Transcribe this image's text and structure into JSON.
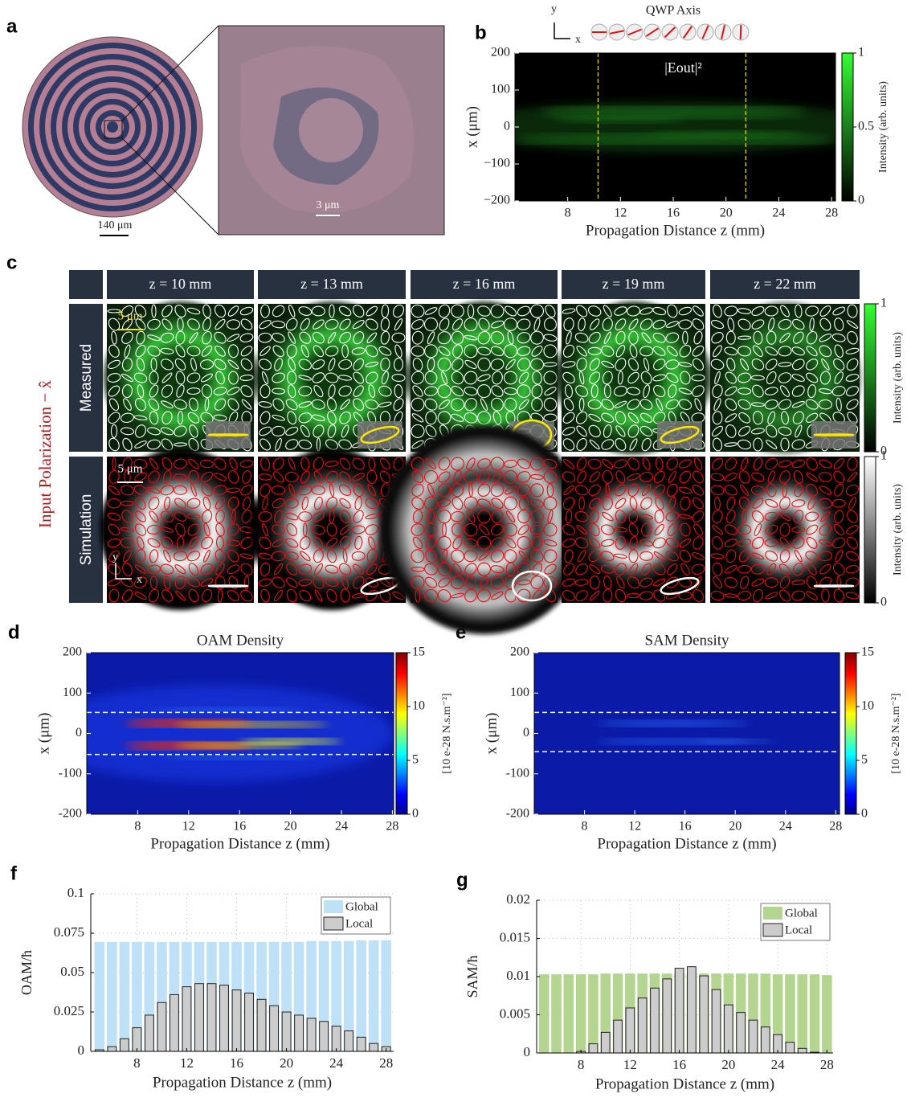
{
  "panel_a": {
    "label": "a",
    "scale_bars": [
      "140 μm",
      "3 μm"
    ]
  },
  "panel_c": {
    "label": "c",
    "columns": [
      "z = 10 mm",
      "z = 13 mm",
      "z = 16 mm",
      "z = 19 mm",
      "z = 22 mm"
    ],
    "rows": [
      "Measured",
      "Simulation"
    ],
    "side_label": "Input Polarization − x̂",
    "scale_bars": [
      "5 μm",
      "5 μm"
    ],
    "axis_icon": [
      "y",
      "x"
    ],
    "colorbars": [
      {
        "label": "Intensity (arb. units)",
        "lim": [
          0,
          1
        ],
        "ticks": [
          0,
          1
        ]
      },
      {
        "label": "Intensity (arb. units)",
        "lim": [
          0,
          1
        ],
        "ticks": [
          0,
          1
        ]
      }
    ]
  },
  "chart_data": [
    {
      "type": "heatmap",
      "label": "b",
      "title": "|Eout|²",
      "annotation": "QWP Axis",
      "axis_icon": [
        "y",
        "x"
      ],
      "xlabel": "Propagation Distance z (mm)",
      "ylabel": "x (μm)",
      "xlim": [
        4,
        28.3
      ],
      "xticks": [
        8,
        12,
        16,
        20,
        24,
        28
      ],
      "ylim": [
        -200,
        200
      ],
      "yticks": [
        {
          "value": -200,
          "label": "−200"
        },
        {
          "value": -100,
          "label": "−100"
        },
        0,
        100,
        200
      ],
      "colormap": "green",
      "vlines": [
        10.3,
        21.5
      ],
      "colorbar": {
        "label": "Intensity (arb. units)",
        "lim": [
          0,
          1
        ],
        "ticks": [
          0,
          0.5,
          1
        ]
      }
    },
    {
      "type": "heatmap",
      "label": "d",
      "title": "OAM Density",
      "xlabel": "Propagation Distance z (mm)",
      "ylabel": "x (μm)",
      "xlim": [
        4,
        28.1
      ],
      "xticks": [
        8,
        12,
        16,
        20,
        24,
        28
      ],
      "ylim": [
        -200,
        200
      ],
      "yticks": [
        -200,
        -100,
        0,
        100,
        200
      ],
      "colormap": "jet",
      "hlines": [
        52,
        -52
      ],
      "colorbar": {
        "label": "[10 e-28 N.s.m⁻²]",
        "lim": [
          0,
          15
        ],
        "ticks": [
          0,
          5,
          10,
          15
        ]
      }
    },
    {
      "type": "heatmap",
      "label": "e",
      "title": "SAM Density",
      "xlabel": "Propagation Distance z (mm)",
      "ylabel": "x (μm)",
      "xlim": [
        4,
        28.3
      ],
      "xticks": [
        8,
        12,
        16,
        20,
        24,
        28
      ],
      "ylim": [
        -200,
        200
      ],
      "yticks": [
        -200,
        -100,
        0,
        100,
        200
      ],
      "colormap": "jet",
      "hlines": [
        52,
        -45
      ],
      "colorbar": {
        "label": "[10 e-28 N.s.m⁻²]",
        "lim": [
          0,
          15
        ],
        "ticks": [
          0,
          5,
          10,
          15
        ]
      }
    },
    {
      "type": "bar",
      "label": "f",
      "xlabel": "Propagation Distance z (mm)",
      "ylabel": "OAM/ħ",
      "x": [
        5,
        6,
        7,
        8,
        9,
        10,
        11,
        12,
        13,
        14,
        15,
        16,
        17,
        18,
        19,
        20,
        21,
        22,
        23,
        24,
        25,
        26,
        27,
        28
      ],
      "series": [
        {
          "name": "Global",
          "color": "#bfe1f8",
          "values": [
            0.0695,
            0.0695,
            0.0695,
            0.0695,
            0.0695,
            0.0695,
            0.0695,
            0.0695,
            0.0695,
            0.0695,
            0.0695,
            0.0695,
            0.0695,
            0.0695,
            0.0695,
            0.0695,
            0.0695,
            0.07,
            0.07,
            0.07,
            0.07,
            0.0705,
            0.0705,
            0.0705
          ]
        },
        {
          "name": "Local",
          "color": "#cccccc",
          "values": [
            0.001,
            0.003,
            0.008,
            0.015,
            0.023,
            0.031,
            0.036,
            0.041,
            0.043,
            0.043,
            0.042,
            0.039,
            0.037,
            0.033,
            0.029,
            0.025,
            0.023,
            0.021,
            0.019,
            0.016,
            0.013,
            0.009,
            0.005,
            0.003
          ]
        }
      ],
      "xlim": [
        4.3,
        28.6
      ],
      "xticks": [
        8,
        12,
        16,
        20,
        24,
        28
      ],
      "ylim": [
        0,
        0.1
      ],
      "yticks": [
        0,
        0.025,
        0.05,
        0.075,
        0.1
      ],
      "grid": true,
      "legend": "upper right"
    },
    {
      "type": "bar",
      "label": "g",
      "xlabel": "Propagation Distance z (mm)",
      "ylabel": "SAM/ħ",
      "x": [
        5,
        6,
        7,
        8,
        9,
        10,
        11,
        12,
        13,
        14,
        15,
        16,
        17,
        18,
        19,
        20,
        21,
        22,
        23,
        24,
        25,
        26,
        27,
        28
      ],
      "series": [
        {
          "name": "Global",
          "color": "#b3d58f",
          "values": [
            0.0103,
            0.0103,
            0.0103,
            0.0103,
            0.0103,
            0.0104,
            0.0104,
            0.0104,
            0.0104,
            0.0104,
            0.0104,
            0.0104,
            0.0104,
            0.0104,
            0.0104,
            0.0104,
            0.0104,
            0.0104,
            0.0104,
            0.0103,
            0.0103,
            0.0103,
            0.0103,
            0.0102
          ]
        },
        {
          "name": "Local",
          "color": "#cccccc",
          "values": [
            0,
            0,
            0,
            0.0002,
            0.0012,
            0.0027,
            0.0043,
            0.0059,
            0.0072,
            0.0085,
            0.0097,
            0.0111,
            0.0113,
            0.0101,
            0.0083,
            0.0063,
            0.0053,
            0.0043,
            0.0034,
            0.0024,
            0.0014,
            0.0006,
            0.0001,
            0
          ]
        }
      ],
      "xlim": [
        4.4,
        28.5
      ],
      "xticks": [
        8,
        12,
        16,
        20,
        24,
        28
      ],
      "ylim": [
        0,
        0.02
      ],
      "yticks": [
        0,
        0.005,
        0.01,
        0.015,
        0.02
      ],
      "grid": true,
      "legend": "upper right"
    }
  ]
}
